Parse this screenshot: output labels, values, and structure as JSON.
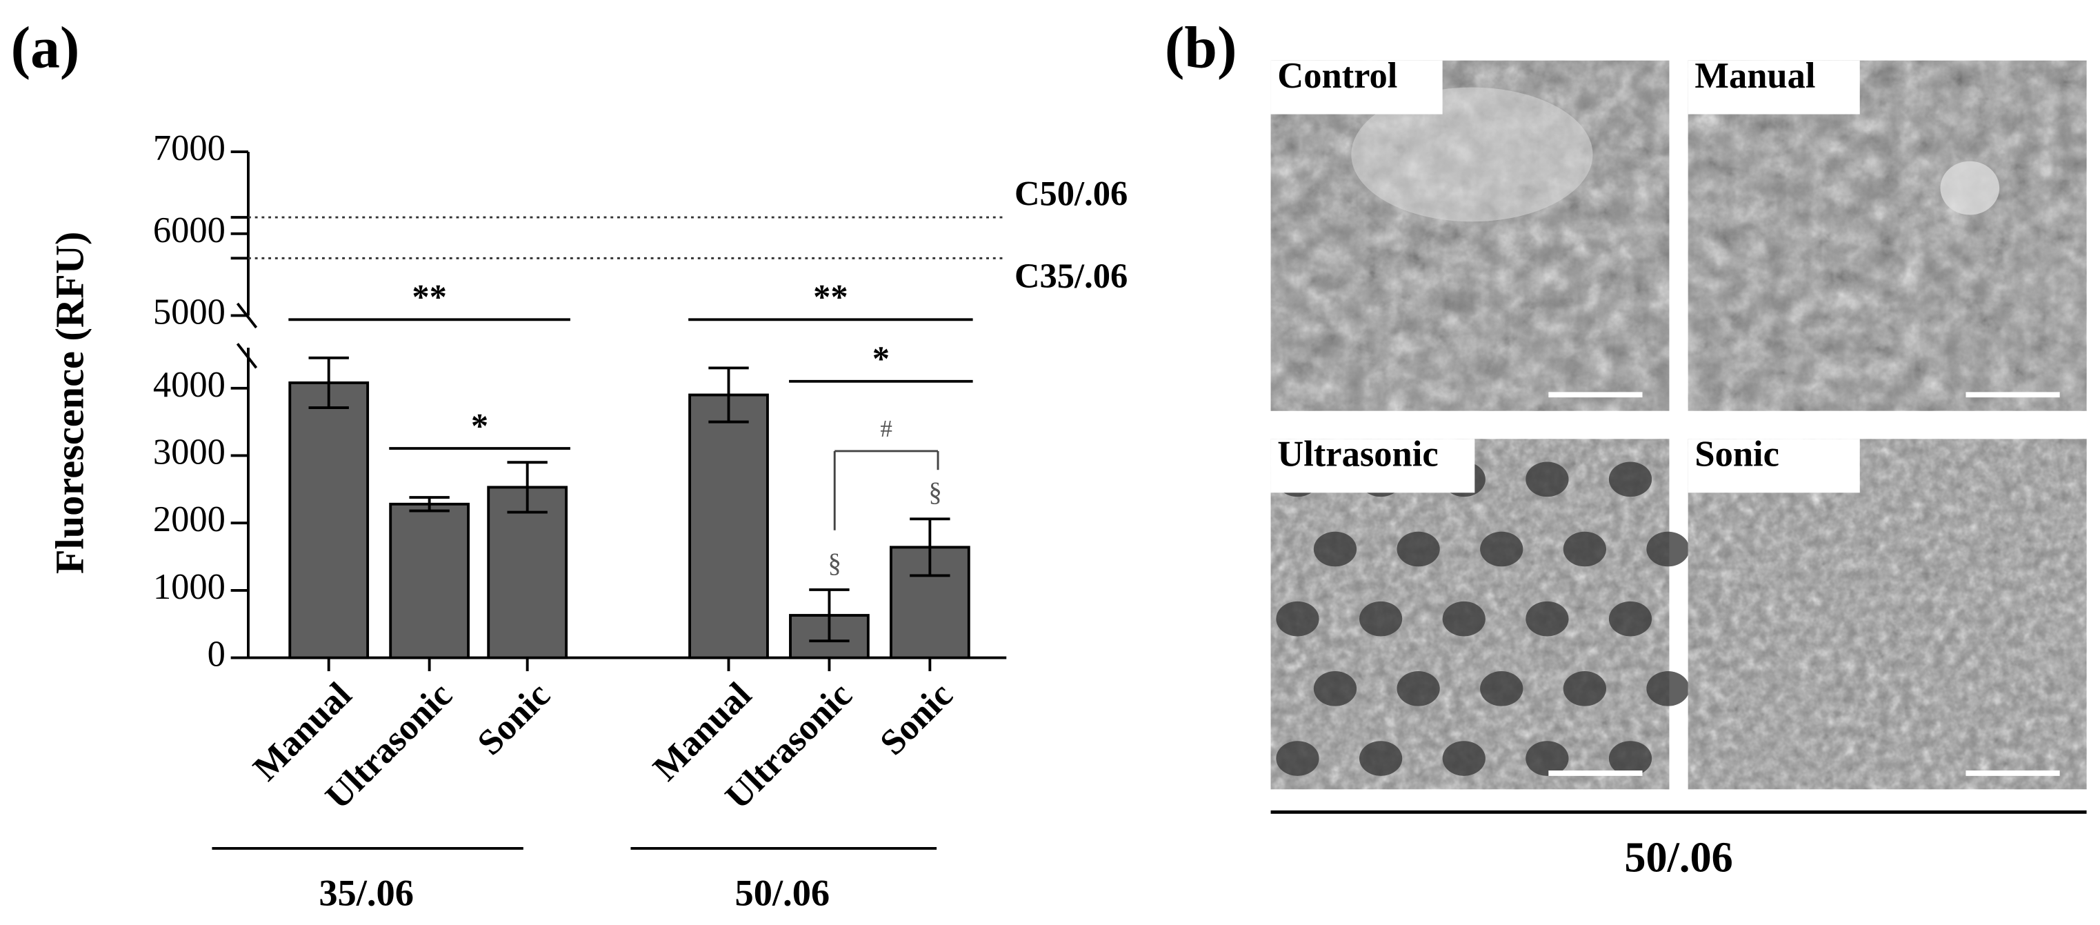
{
  "chart_data": {
    "type": "bar",
    "panel_label": "(a)",
    "y_label": "Fluorescence (RFU)",
    "categories": [
      "Manual",
      "Ultrasonic",
      "Sonic",
      "Manual",
      "Ultrasonic",
      "Sonic"
    ],
    "group_labels": [
      "35/.06",
      "50/.06"
    ],
    "values": [
      4080,
      2280,
      2530,
      3900,
      630,
      1640
    ],
    "errors": [
      370,
      100,
      370,
      400,
      380,
      420
    ],
    "color": "#5f5f5f",
    "ylim": [
      0,
      4600
    ],
    "yticks": [
      0,
      1000,
      2000,
      3000,
      4000
    ],
    "ylim_upper": [
      5000,
      7000
    ],
    "yticks_upper": [
      5000,
      6000,
      7000
    ],
    "reference_lines": [
      {
        "label": "C50/.06",
        "value": 6200
      },
      {
        "label": "C35/.06",
        "value": 5700
      }
    ],
    "brackets": [
      {
        "text": "**",
        "from": 0,
        "to": 2
      },
      {
        "text": "*",
        "from": 1,
        "to": 2
      },
      {
        "text": "**",
        "from": 3,
        "to": 5
      },
      {
        "text": "*",
        "from": 4,
        "to": 5
      },
      {
        "text": "#",
        "from": 4,
        "to": 5
      }
    ],
    "bar_symbols": [
      null,
      null,
      null,
      null,
      "§",
      "§"
    ]
  },
  "panel_b": {
    "panel_label": "(b)",
    "images": [
      {
        "label": "Control"
      },
      {
        "label": "Manual"
      },
      {
        "label": "Ultrasonic"
      },
      {
        "label": "Sonic"
      }
    ],
    "group_label": "50/.06"
  }
}
